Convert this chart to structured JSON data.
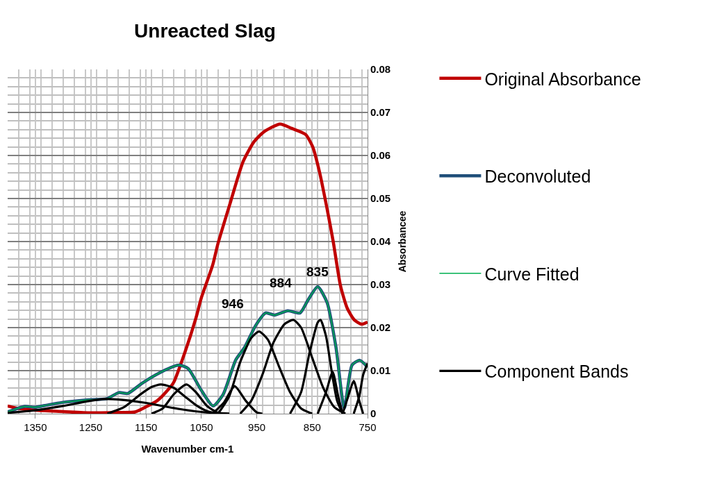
{
  "chart_data": {
    "type": "line",
    "title": "Unreacted Slag",
    "xlabel": "Wavenumber cm-1",
    "ylabel": "Absorbancee",
    "xlim": [
      1400,
      750
    ],
    "xticks": [
      1350,
      1250,
      1150,
      1050,
      950,
      850,
      750
    ],
    "ylim": [
      0,
      0.08
    ],
    "yticks": [
      0,
      0.01,
      0.02,
      0.03,
      0.04,
      0.05,
      0.06,
      0.07,
      0.08
    ],
    "grid": true,
    "legend": "right",
    "marker": "none",
    "line_style": "solid",
    "annotations": [
      {
        "text": "946",
        "x": 946,
        "y": 0.0191
      },
      {
        "text": "884",
        "x": 884,
        "y": 0.0218
      },
      {
        "text": "835",
        "x": 840,
        "y": 0.0295
      }
    ],
    "series": [
      {
        "name": "Original Absorbance",
        "color": "#c00000",
        "x": [
          1400,
          1380,
          1350,
          1300,
          1250,
          1200,
          1170,
          1150,
          1130,
          1110,
          1100,
          1080,
          1060,
          1050,
          1030,
          1020,
          997,
          975,
          955,
          937,
          908,
          887,
          862,
          849,
          837,
          824,
          812,
          799,
          787,
          774,
          761,
          750
        ],
        "values": [
          0.0018,
          0.0012,
          0.0008,
          0.0005,
          0.0002,
          0.0003,
          0.0004,
          0.0016,
          0.003,
          0.0056,
          0.0073,
          0.0142,
          0.0222,
          0.027,
          0.0344,
          0.0396,
          0.0494,
          0.0585,
          0.0632,
          0.0655,
          0.0673,
          0.0663,
          0.0649,
          0.062,
          0.0563,
          0.0482,
          0.04,
          0.0298,
          0.0246,
          0.0218,
          0.0208,
          0.0213
        ]
      },
      {
        "name": "Deconvoluted",
        "color": "#1f4e79",
        "x": [
          1400,
          1369,
          1351,
          1333,
          1302,
          1257,
          1221,
          1199,
          1183,
          1158,
          1127,
          1091,
          1074,
          1051,
          1029,
          1011,
          988,
          972,
          952,
          934,
          918,
          894,
          872,
          858,
          840,
          823,
          807,
          792,
          778,
          764,
          750
        ],
        "values": [
          0.0004,
          0.0017,
          0.0015,
          0.0019,
          0.0026,
          0.0032,
          0.0035,
          0.0049,
          0.0047,
          0.007,
          0.0094,
          0.0113,
          0.0105,
          0.0056,
          0.0018,
          0.0044,
          0.0125,
          0.0154,
          0.0205,
          0.0234,
          0.0229,
          0.0239,
          0.0234,
          0.0263,
          0.0295,
          0.0258,
          0.0154,
          0.0013,
          0.0113,
          0.0124,
          0.0108
        ]
      },
      {
        "name": "Curve Fitted",
        "color": "#00b050",
        "x": [
          1400,
          1369,
          1351,
          1333,
          1302,
          1257,
          1221,
          1199,
          1183,
          1158,
          1127,
          1091,
          1074,
          1051,
          1029,
          1011,
          988,
          972,
          952,
          934,
          918,
          894,
          872,
          858,
          840,
          823,
          807,
          792,
          778,
          764,
          750
        ],
        "values": [
          0.0004,
          0.0017,
          0.0015,
          0.0019,
          0.0026,
          0.0032,
          0.0035,
          0.0049,
          0.0047,
          0.007,
          0.0094,
          0.0113,
          0.0105,
          0.0056,
          0.0018,
          0.0044,
          0.0125,
          0.0154,
          0.0205,
          0.0234,
          0.0229,
          0.0239,
          0.0234,
          0.0263,
          0.0295,
          0.0258,
          0.0154,
          0.0013,
          0.0113,
          0.0124,
          0.0108
        ]
      },
      {
        "name": "Component Bands",
        "color": "#000000",
        "x": [
          1400,
          1350,
          1300,
          1250,
          1225,
          1200,
          1150,
          1100,
          1050,
          1000
        ],
        "values": [
          0.0002,
          0.0008,
          0.0018,
          0.003,
          0.0034,
          0.0033,
          0.0025,
          0.0013,
          0.0004,
          0
        ]
      },
      {
        "color": "#000000",
        "x": [
          1220,
          1190,
          1160,
          1140,
          1123,
          1100,
          1080,
          1060,
          1040,
          1020
        ],
        "values": [
          0,
          0.0015,
          0.0045,
          0.0062,
          0.0068,
          0.006,
          0.004,
          0.002,
          0.0006,
          0
        ]
      },
      {
        "color": "#000000",
        "x": [
          1140,
          1120,
          1100,
          1077,
          1060,
          1040,
          1020,
          1000
        ],
        "values": [
          0,
          0.0012,
          0.0045,
          0.0068,
          0.005,
          0.0018,
          0.0002,
          0
        ]
      },
      {
        "color": "#000000",
        "x": [
          1030,
          1010,
          990,
          970,
          950,
          940
        ],
        "values": [
          0,
          0.0025,
          0.0064,
          0.003,
          0.0003,
          0
        ]
      },
      {
        "color": "#000000",
        "x": [
          1020,
          1000,
          980,
          960,
          946,
          930,
          910,
          890,
          870,
          850
        ],
        "values": [
          0,
          0.004,
          0.012,
          0.0176,
          0.0191,
          0.0172,
          0.011,
          0.005,
          0.0012,
          0
        ]
      },
      {
        "color": "#000000",
        "x": [
          980,
          960,
          940,
          920,
          900,
          884,
          870,
          850,
          830,
          810,
          790
        ],
        "values": [
          0,
          0.003,
          0.009,
          0.0165,
          0.0208,
          0.0218,
          0.02,
          0.013,
          0.006,
          0.0015,
          0
        ]
      },
      {
        "color": "#000000",
        "x": [
          890,
          870,
          855,
          840,
          835,
          825,
          815,
          805,
          795
        ],
        "values": [
          0,
          0.005,
          0.014,
          0.0212,
          0.0218,
          0.018,
          0.01,
          0.003,
          0
        ]
      },
      {
        "color": "#000000",
        "x": [
          840,
          825,
          813,
          803,
          795
        ],
        "values": [
          0,
          0.005,
          0.0097,
          0.004,
          0
        ]
      },
      {
        "color": "#000000",
        "x": [
          795,
          785,
          775,
          765,
          758
        ],
        "values": [
          0,
          0.004,
          0.0076,
          0.003,
          0
        ]
      },
      {
        "color": "#000000",
        "x": [
          775,
          765,
          758,
          750
        ],
        "values": [
          0,
          0.004,
          0.009,
          0.0117
        ]
      }
    ]
  }
}
